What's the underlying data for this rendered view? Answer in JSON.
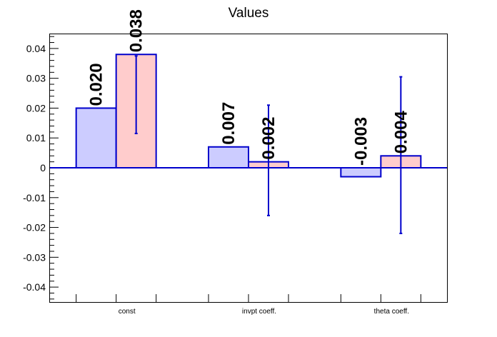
{
  "chart_data": {
    "type": "bar",
    "title": "Values",
    "xlabel": "",
    "ylabel": "",
    "categories": [
      "const",
      "invpt coeff.",
      "theta coeff."
    ],
    "ylim": [
      -0.045,
      0.045
    ],
    "yticks": [
      -0.04,
      -0.03,
      -0.02,
      -0.01,
      0,
      0.01,
      0.02,
      0.03,
      0.04
    ],
    "ytick_labels": [
      "-0.04",
      "-0.03",
      "-0.02",
      "-0.01",
      "0",
      "0.01",
      "0.02",
      "0.03",
      "0.04"
    ],
    "series": [
      {
        "values": [
          0.02,
          0.007,
          -0.003
        ],
        "labels": [
          "0.020",
          "0.007",
          "-0.003"
        ],
        "color": "#ccccff",
        "edge_color": "#0000cc",
        "errors": null
      },
      {
        "values": [
          0.038,
          0.002,
          0.004
        ],
        "labels": [
          "0.038",
          "0.002",
          "0.004"
        ],
        "color": "#ffcccc",
        "edge_color": "#0000cc",
        "errors": [
          [
            0.0115,
            0.0375
          ],
          [
            -0.016,
            0.021
          ],
          [
            -0.022,
            0.0305
          ]
        ]
      }
    ],
    "grid": false,
    "legend": "none"
  }
}
